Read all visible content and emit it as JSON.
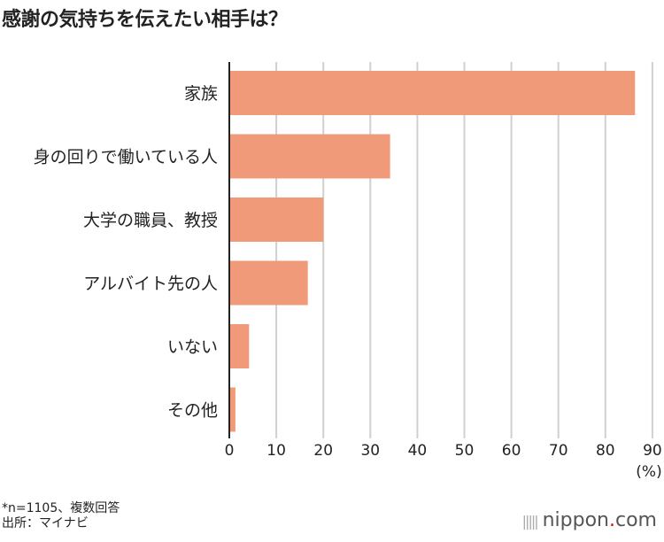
{
  "chart_data": {
    "type": "bar",
    "orientation": "horizontal",
    "title": "感謝の気持ちを伝えたい相手は？",
    "categories": [
      "家族",
      "身の回りで働いている人",
      "大学の職員、教授",
      "アルバイト先の人",
      "いない",
      "その他"
    ],
    "values": [
      86.3,
      34.2,
      20.0,
      16.7,
      4.2,
      1.3
    ],
    "xlim": [
      0,
      90
    ],
    "xticks": [
      0,
      10,
      20,
      30,
      40,
      50,
      60,
      70,
      80,
      90
    ],
    "xlabel": "(%)",
    "grid": true,
    "bar_color": "#f09a7a"
  },
  "footer": {
    "note": "*n=1105、複数回答",
    "source": "出所：マイナビ"
  },
  "logo": {
    "text": "nippon",
    "dot": ".",
    "suffix": "com"
  }
}
